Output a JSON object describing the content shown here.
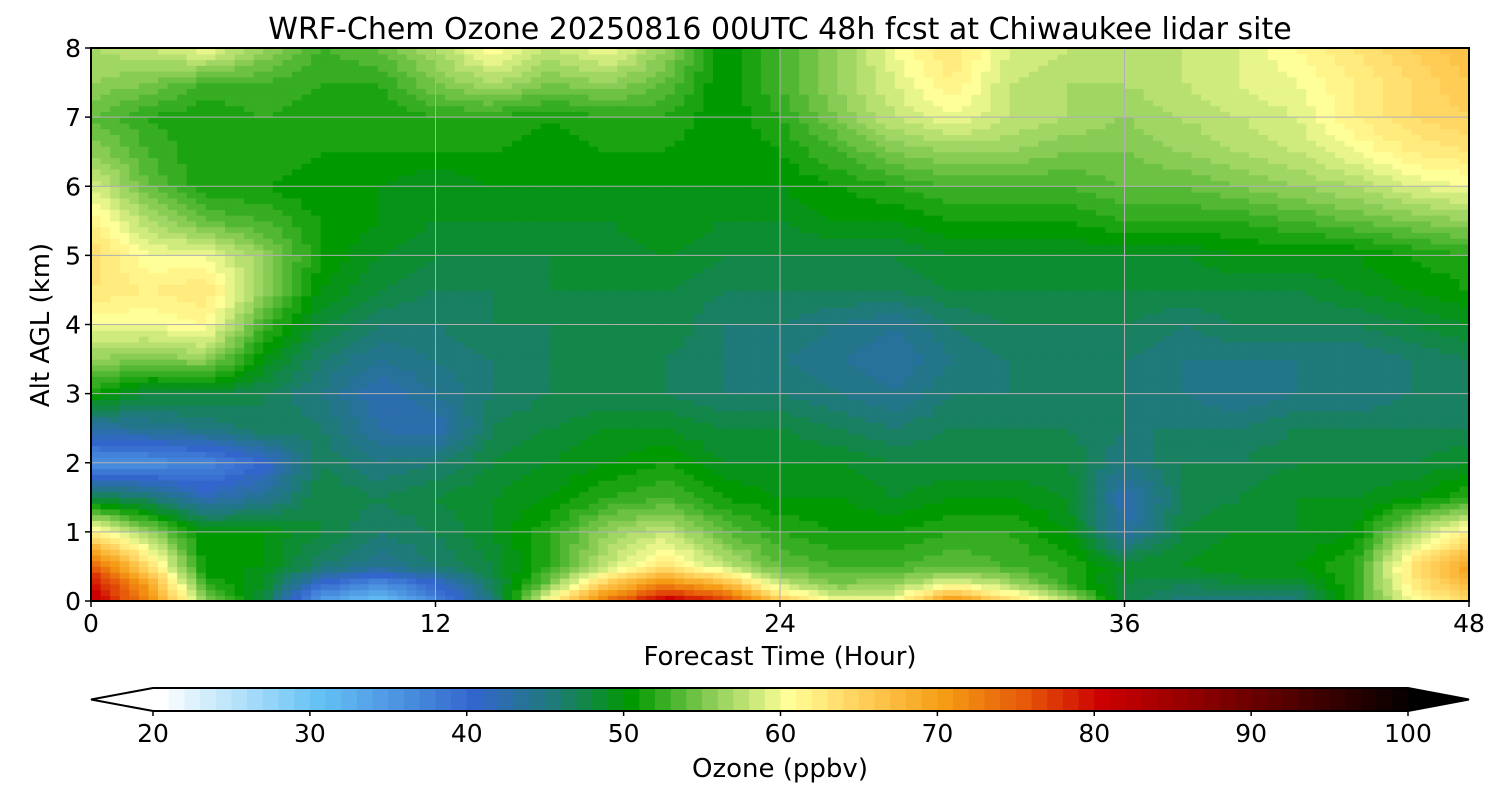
{
  "chart_data": {
    "type": "heatmap",
    "title": "WRF-Chem Ozone  20250816 00UTC 48h fcst at Chiwaukee lidar site",
    "xlabel": "Forecast Time (Hour)",
    "ylabel": "Alt AGL (km)",
    "xlim": [
      0,
      48
    ],
    "ylim": [
      0,
      8
    ],
    "xticks": [
      0,
      12,
      24,
      36,
      48
    ],
    "yticks": [
      0,
      1,
      2,
      3,
      4,
      5,
      6,
      7,
      8
    ],
    "grid": true,
    "z_units": "ppbv",
    "x": [
      0,
      2,
      4,
      6,
      8,
      10,
      12,
      14,
      16,
      18,
      20,
      22,
      24,
      26,
      28,
      30,
      32,
      34,
      36,
      38,
      40,
      42,
      44,
      46,
      48
    ],
    "y": [
      0,
      0.25,
      0.5,
      1,
      1.5,
      2,
      2.5,
      3,
      3.5,
      4,
      4.5,
      5,
      5.5,
      6,
      6.5,
      7,
      7.5,
      8
    ],
    "z": [
      [
        82,
        72,
        56,
        48,
        34,
        30,
        37,
        45,
        62,
        74,
        82,
        78,
        66,
        60,
        60,
        72,
        64,
        58,
        48,
        45,
        45,
        45,
        52,
        60,
        64
      ],
      [
        80,
        70,
        52,
        49,
        40,
        36,
        40,
        47,
        55,
        66,
        72,
        68,
        58,
        55,
        56,
        60,
        57,
        52,
        48,
        47,
        48,
        48,
        52,
        62,
        68
      ],
      [
        76,
        64,
        50,
        50,
        46,
        44,
        46,
        48,
        52,
        58,
        63,
        58,
        54,
        53,
        53,
        54,
        53,
        52,
        49,
        49,
        50,
        50,
        52,
        63,
        70
      ],
      [
        62,
        56,
        50,
        50,
        48,
        46,
        47,
        49,
        52,
        56,
        58,
        54,
        52,
        51,
        51,
        52,
        52,
        50,
        43,
        48,
        49,
        49,
        50,
        57,
        62
      ],
      [
        48,
        46,
        42,
        44,
        48,
        47,
        48,
        49,
        50,
        52,
        53,
        51,
        50,
        50,
        49,
        50,
        50,
        49,
        42,
        47,
        48,
        49,
        49,
        50,
        52
      ],
      [
        36,
        36,
        37,
        40,
        47,
        45,
        46,
        48,
        49,
        50,
        51,
        49,
        49,
        49,
        48,
        48,
        48,
        48,
        45,
        47,
        47,
        48,
        48,
        48,
        49
      ],
      [
        43,
        44,
        45,
        47,
        46,
        43,
        42,
        47,
        48,
        49,
        49,
        48,
        48,
        47,
        46,
        47,
        47,
        47,
        46,
        46,
        46,
        47,
        47,
        47,
        47
      ],
      [
        51,
        48,
        48,
        47,
        45,
        42,
        44,
        46,
        47,
        47,
        47,
        46,
        46,
        45,
        44,
        46,
        46,
        46,
        46,
        45,
        44,
        45,
        45,
        46,
        46
      ],
      [
        56,
        55,
        56,
        50,
        46,
        44,
        45,
        46,
        47,
        47,
        47,
        46,
        45,
        44,
        43,
        45,
        46,
        46,
        46,
        45,
        45,
        45,
        45,
        46,
        47
      ],
      [
        60,
        60,
        61,
        53,
        48,
        46,
        46,
        47,
        47,
        47,
        48,
        46,
        46,
        45,
        44,
        46,
        47,
        47,
        47,
        46,
        47,
        47,
        47,
        48,
        49
      ],
      [
        63,
        62,
        63,
        56,
        50,
        48,
        47,
        47,
        48,
        48,
        48,
        47,
        47,
        47,
        47,
        48,
        48,
        48,
        48,
        48,
        48,
        48,
        49,
        50,
        51
      ],
      [
        64,
        60,
        60,
        56,
        51,
        49,
        48,
        48,
        48,
        48,
        49,
        48,
        48,
        48,
        48,
        49,
        49,
        49,
        49,
        49,
        50,
        50,
        50,
        51,
        52
      ],
      [
        62,
        57,
        54,
        53,
        51,
        50,
        49,
        49,
        49,
        49,
        50,
        49,
        49,
        50,
        50,
        51,
        51,
        51,
        52,
        52,
        52,
        53,
        54,
        55,
        56
      ],
      [
        59,
        54,
        51,
        51,
        50,
        50,
        49,
        50,
        50,
        50,
        50,
        50,
        50,
        51,
        52,
        53,
        53,
        53,
        54,
        54,
        55,
        56,
        57,
        59,
        60
      ],
      [
        56,
        53,
        51,
        52,
        51,
        51,
        51,
        51,
        50,
        51,
        51,
        50,
        51,
        53,
        55,
        56,
        56,
        55,
        55,
        56,
        57,
        58,
        60,
        62,
        63
      ],
      [
        54,
        52,
        51,
        52,
        51,
        51,
        52,
        52,
        51,
        52,
        52,
        50,
        52,
        55,
        58,
        60,
        58,
        57,
        56,
        57,
        58,
        59,
        62,
        64,
        65
      ],
      [
        56,
        55,
        53,
        53,
        52,
        52,
        55,
        57,
        55,
        56,
        54,
        50,
        53,
        56,
        59,
        62,
        58,
        57,
        57,
        58,
        59,
        60,
        62,
        64,
        66
      ],
      [
        57,
        58,
        60,
        56,
        53,
        54,
        57,
        61,
        58,
        60,
        56,
        50,
        53,
        56,
        60,
        63,
        59,
        58,
        57,
        58,
        59,
        61,
        63,
        65,
        67
      ]
    ]
  },
  "colorbar": {
    "label": "Ozone  (ppbv)",
    "min": 20,
    "max": 100,
    "step": 1,
    "ticks": [
      20,
      30,
      40,
      50,
      60,
      70,
      80,
      90,
      100
    ],
    "colors": [
      {
        "v": 20,
        "c": "#ffffff"
      },
      {
        "v": 30,
        "c": "#66c2f5"
      },
      {
        "v": 40,
        "c": "#3366cc"
      },
      {
        "v": 45,
        "c": "#1f7a7a"
      },
      {
        "v": 50,
        "c": "#009900"
      },
      {
        "v": 55,
        "c": "#88cc55"
      },
      {
        "v": 60,
        "c": "#ffff99"
      },
      {
        "v": 65,
        "c": "#ffcc55"
      },
      {
        "v": 70,
        "c": "#f59b14"
      },
      {
        "v": 75,
        "c": "#e65a0a"
      },
      {
        "v": 80,
        "c": "#cc0000"
      },
      {
        "v": 90,
        "c": "#660000"
      },
      {
        "v": 100,
        "c": "#000000"
      }
    ]
  }
}
